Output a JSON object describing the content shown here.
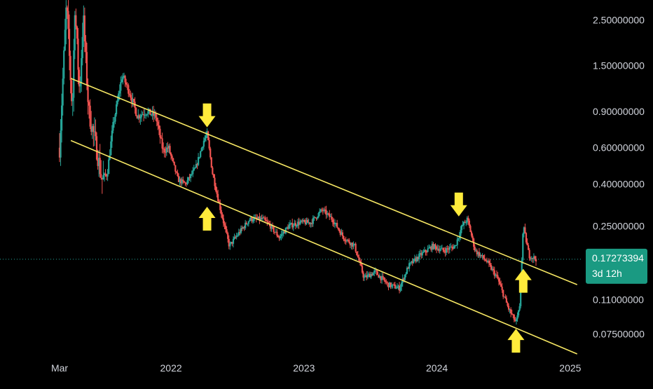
{
  "colors": {
    "background": "#000000",
    "up": "#26a69a",
    "down": "#ef5350",
    "channel": "#f5e663",
    "arrow": "#ffeb3b",
    "price_tag": "#1a9a82",
    "axis_text": "#d1d4dc",
    "current_line": "#26a69a"
  },
  "chart_data": {
    "type": "candlestick",
    "title": "",
    "xlabel": "",
    "ylabel": "",
    "y_scale": "log",
    "grid": false,
    "xlim": [
      "2021-03-01",
      "2025-02-01"
    ],
    "ylim": [
      0.06,
      3.0
    ],
    "x_ticks": [
      {
        "date": "2021-03-01",
        "label": "Mar"
      },
      {
        "date": "2022-01-01",
        "label": "2022"
      },
      {
        "date": "2023-01-01",
        "label": "2023"
      },
      {
        "date": "2024-01-01",
        "label": "2024"
      },
      {
        "date": "2025-01-01",
        "label": "2025"
      }
    ],
    "y_ticks": [
      {
        "value": 2.5,
        "label": "2.50000000"
      },
      {
        "value": 1.5,
        "label": "1.50000000"
      },
      {
        "value": 0.9,
        "label": "0.90000000"
      },
      {
        "value": 0.6,
        "label": "0.60000000"
      },
      {
        "value": 0.4,
        "label": "0.40000000"
      },
      {
        "value": 0.25,
        "label": "0.25000000"
      },
      {
        "value": 0.11,
        "label": "0.11000000"
      },
      {
        "value": 0.075,
        "label": "0.07500000"
      }
    ],
    "current_price": {
      "value": 0.17273394,
      "label": "0.17273394",
      "countdown": "3d 12h"
    },
    "trend_channel": [
      {
        "name": "",
        "points": [
          [
            "2021-04-01",
            1.3
          ],
          [
            "2025-01-20",
            0.13
          ]
        ]
      },
      {
        "name": "",
        "points": [
          [
            "2021-04-01",
            0.65
          ],
          [
            "2025-01-20",
            0.06
          ]
        ]
      }
    ],
    "annotations": [
      {
        "type": "arrow",
        "direction": "down",
        "date": "2022-04-10",
        "value": 0.73
      },
      {
        "type": "arrow",
        "direction": "up",
        "date": "2022-04-10",
        "value": 0.32
      },
      {
        "type": "arrow",
        "direction": "down",
        "date": "2024-03-01",
        "value": 0.27
      },
      {
        "type": "arrow",
        "direction": "up",
        "date": "2024-08-05",
        "value": 0.082
      },
      {
        "type": "arrow",
        "direction": "up",
        "date": "2024-08-25",
        "value": 0.16
      }
    ],
    "price_path": [
      [
        "2021-03-01",
        0.6
      ],
      [
        "2021-03-20",
        3.0
      ],
      [
        "2021-04-05",
        0.9
      ],
      [
        "2021-04-12",
        2.9
      ],
      [
        "2021-04-25",
        1.1
      ],
      [
        "2021-05-05",
        2.6
      ],
      [
        "2021-05-20",
        0.9
      ],
      [
        "2021-06-10",
        0.6
      ],
      [
        "2021-06-25",
        0.42
      ],
      [
        "2021-07-10",
        0.45
      ],
      [
        "2021-07-25",
        0.75
      ],
      [
        "2021-08-20",
        1.35
      ],
      [
        "2021-09-10",
        1.1
      ],
      [
        "2021-10-01",
        0.85
      ],
      [
        "2021-10-25",
        0.9
      ],
      [
        "2021-11-20",
        0.85
      ],
      [
        "2021-12-10",
        0.58
      ],
      [
        "2021-12-25",
        0.6
      ],
      [
        "2022-01-20",
        0.42
      ],
      [
        "2022-02-10",
        0.4
      ],
      [
        "2022-03-10",
        0.48
      ],
      [
        "2022-04-01",
        0.65
      ],
      [
        "2022-04-10",
        0.7
      ],
      [
        "2022-04-25",
        0.45
      ],
      [
        "2022-05-15",
        0.31
      ],
      [
        "2022-06-10",
        0.2
      ],
      [
        "2022-07-05",
        0.23
      ],
      [
        "2022-08-05",
        0.27
      ],
      [
        "2022-09-10",
        0.27
      ],
      [
        "2022-10-01",
        0.25
      ],
      [
        "2022-10-25",
        0.22
      ],
      [
        "2022-11-20",
        0.25
      ],
      [
        "2022-12-20",
        0.26
      ],
      [
        "2023-01-20",
        0.26
      ],
      [
        "2023-02-20",
        0.3
      ],
      [
        "2023-03-20",
        0.27
      ],
      [
        "2023-04-20",
        0.22
      ],
      [
        "2023-05-20",
        0.2
      ],
      [
        "2023-06-15",
        0.14
      ],
      [
        "2023-07-15",
        0.15
      ],
      [
        "2023-08-20",
        0.13
      ],
      [
        "2023-09-20",
        0.125
      ],
      [
        "2023-10-15",
        0.16
      ],
      [
        "2023-11-15",
        0.18
      ],
      [
        "2023-12-20",
        0.2
      ],
      [
        "2024-01-20",
        0.19
      ],
      [
        "2024-02-20",
        0.2
      ],
      [
        "2024-03-10",
        0.25
      ],
      [
        "2024-03-25",
        0.27
      ],
      [
        "2024-04-15",
        0.19
      ],
      [
        "2024-05-15",
        0.17
      ],
      [
        "2024-06-15",
        0.14
      ],
      [
        "2024-07-15",
        0.1
      ],
      [
        "2024-08-05",
        0.085
      ],
      [
        "2024-08-15",
        0.1
      ],
      [
        "2024-08-25",
        0.25
      ],
      [
        "2024-09-10",
        0.18
      ],
      [
        "2024-09-30",
        0.1727
      ]
    ]
  }
}
